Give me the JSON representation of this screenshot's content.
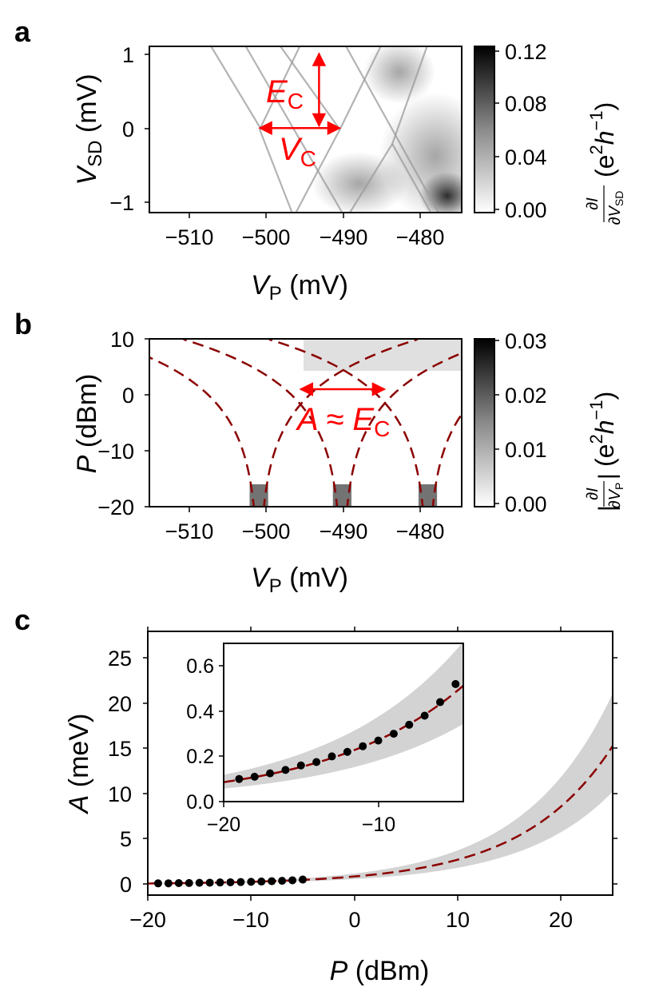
{
  "figure": {
    "panels": [
      "a",
      "b",
      "c"
    ]
  },
  "chart_data": [
    {
      "id": "a",
      "type": "heatmap",
      "panel_label": "a",
      "xlabel_main": "V",
      "xlabel_sub": "P",
      "xlabel_unit": " (mV)",
      "ylabel_main": "V",
      "ylabel_sub": "SD",
      "ylabel_unit": " (mV)",
      "xlim": [
        -515.5,
        -475
      ],
      "ylim": [
        -1.15,
        1.15
      ],
      "xticks": [
        -510,
        -500,
        -490,
        -480
      ],
      "xtick_labels": [
        "−510",
        "−500",
        "−490",
        "−480"
      ],
      "yticks": [
        -1,
        0,
        1
      ],
      "ytick_labels": [
        "−1",
        "0",
        "1"
      ],
      "colorbar": {
        "min": 0.0,
        "max": 0.12,
        "ticks": [
          0.0,
          0.04,
          0.08,
          0.12
        ],
        "tick_labels": [
          "0.00",
          "0.04",
          "0.08",
          "0.12"
        ],
        "label_num": "∂I",
        "label_den": "∂V",
        "label_den_sub": "SD",
        "label_units": "(e",
        "label_exp1": "2",
        "label_h": "h",
        "label_exp2": "−1",
        "label_close": ")"
      },
      "annotations": {
        "ec_main": "E",
        "ec_sub": "C",
        "vc_main": "V",
        "vc_sub": "C",
        "ec_arrow": {
          "x": -493.5,
          "y0": 1.05,
          "y1": 0.05
        },
        "vc_arrow": {
          "y": 0.02,
          "x0": -501.2,
          "x1": -490.8
        }
      },
      "diamond_lines": [
        {
          "from": [
            -507.5,
            1.15
          ],
          "to": [
            -501.0,
            0.0
          ]
        },
        {
          "from": [
            -503.0,
            1.15
          ],
          "to": [
            -490.5,
            -1.15
          ]
        },
        {
          "from": [
            -498.5,
            1.15
          ],
          "to": [
            -490.8,
            0.0
          ]
        },
        {
          "from": [
            -501.2,
            0.0
          ],
          "to": [
            -497.0,
            -1.15
          ]
        },
        {
          "from": [
            -496.0,
            1.15
          ],
          "to": [
            -501.2,
            0.0
          ]
        },
        {
          "from": [
            -490.8,
            0.0
          ],
          "to": [
            -485.5,
            1.15
          ]
        },
        {
          "from": [
            -490.8,
            0.0
          ],
          "to": [
            -496.5,
            -1.15
          ]
        },
        {
          "from": [
            -490.0,
            1.15
          ],
          "to": [
            -478.0,
            -1.15
          ]
        },
        {
          "from": [
            -479.5,
            1.15
          ],
          "to": [
            -484.0,
            -0.2
          ]
        },
        {
          "from": [
            -484.0,
            -0.2
          ],
          "to": [
            -479.0,
            -1.15
          ]
        },
        {
          "from": [
            -484.0,
            -0.2
          ],
          "to": [
            -489.5,
            -1.15
          ]
        }
      ]
    },
    {
      "id": "b",
      "type": "heatmap",
      "panel_label": "b",
      "xlabel_main": "V",
      "xlabel_sub": "P",
      "xlabel_unit": " (mV)",
      "ylabel_main": "P",
      "ylabel_unit": " (dBm)",
      "xlim": [
        -515.5,
        -475
      ],
      "ylim": [
        -20,
        10
      ],
      "xticks": [
        -510,
        -500,
        -490,
        -480
      ],
      "xtick_labels": [
        "−510",
        "−500",
        "−490",
        "−480"
      ],
      "yticks": [
        -20,
        -10,
        0,
        10
      ],
      "ytick_labels": [
        "−20",
        "−10",
        "0",
        "10"
      ],
      "colorbar": {
        "min": 0.0,
        "max": 0.03,
        "ticks": [
          0.0,
          0.01,
          0.02,
          0.03
        ],
        "tick_labels": [
          "0.00",
          "0.01",
          "0.02",
          "0.03"
        ],
        "label_bar_open": "|",
        "label_num": "∂I",
        "label_den": "∂V",
        "label_den_sub": "P",
        "label_bar_close": "|",
        "label_units": "(e",
        "label_exp1": "2",
        "label_h": "h",
        "label_exp2": "−1",
        "label_close": ")"
      },
      "resonance_centers": [
        -501.3,
        -490.5,
        -479.4
      ],
      "resonance_p0": -20.8,
      "annotation": {
        "text_main": "A ≈ E",
        "text_sub": "C",
        "arrow": {
          "y": 1.0,
          "x0": -495.9,
          "x1": -485.0
        }
      }
    },
    {
      "id": "c",
      "type": "scatter",
      "panel_label": "c",
      "xlabel_main": "P",
      "xlabel_unit": " (dBm)",
      "ylabel_main": "A",
      "ylabel_unit": " (meV)",
      "xlim": [
        -20,
        25
      ],
      "ylim": [
        -1.2,
        28
      ],
      "xticks": [
        -20,
        -10,
        0,
        10,
        20
      ],
      "xtick_labels": [
        "−20",
        "−10",
        "0",
        "10",
        "20"
      ],
      "yticks": [
        0,
        5,
        10,
        15,
        20,
        25
      ],
      "ytick_labels": [
        "0",
        "5",
        "10",
        "15",
        "20",
        "25"
      ],
      "fit_curve": {
        "A0": 0.0966,
        "P0": -19,
        "slope_db": 20
      },
      "band": {
        "lower_factor": 0.67,
        "upper_factor": 1.38
      },
      "points": {
        "x": [
          -19,
          -18,
          -17,
          -16,
          -15,
          -14,
          -13,
          -12,
          -11,
          -10,
          -9,
          -8,
          -7,
          -6,
          -5
        ],
        "y": [
          0.1,
          0.11,
          0.125,
          0.14,
          0.16,
          0.175,
          0.2,
          0.22,
          0.245,
          0.27,
          0.3,
          0.34,
          0.38,
          0.44,
          0.52
        ]
      },
      "inset": {
        "xlim": [
          -20,
          -4.5
        ],
        "ylim": [
          0.0,
          0.7
        ],
        "xticks": [
          -20,
          -10
        ],
        "xtick_labels": [
          "−20",
          "−10"
        ],
        "yticks": [
          0.0,
          0.2,
          0.4,
          0.6
        ],
        "ytick_labels": [
          "0.0",
          "0.2",
          "0.4",
          "0.6"
        ]
      }
    }
  ]
}
